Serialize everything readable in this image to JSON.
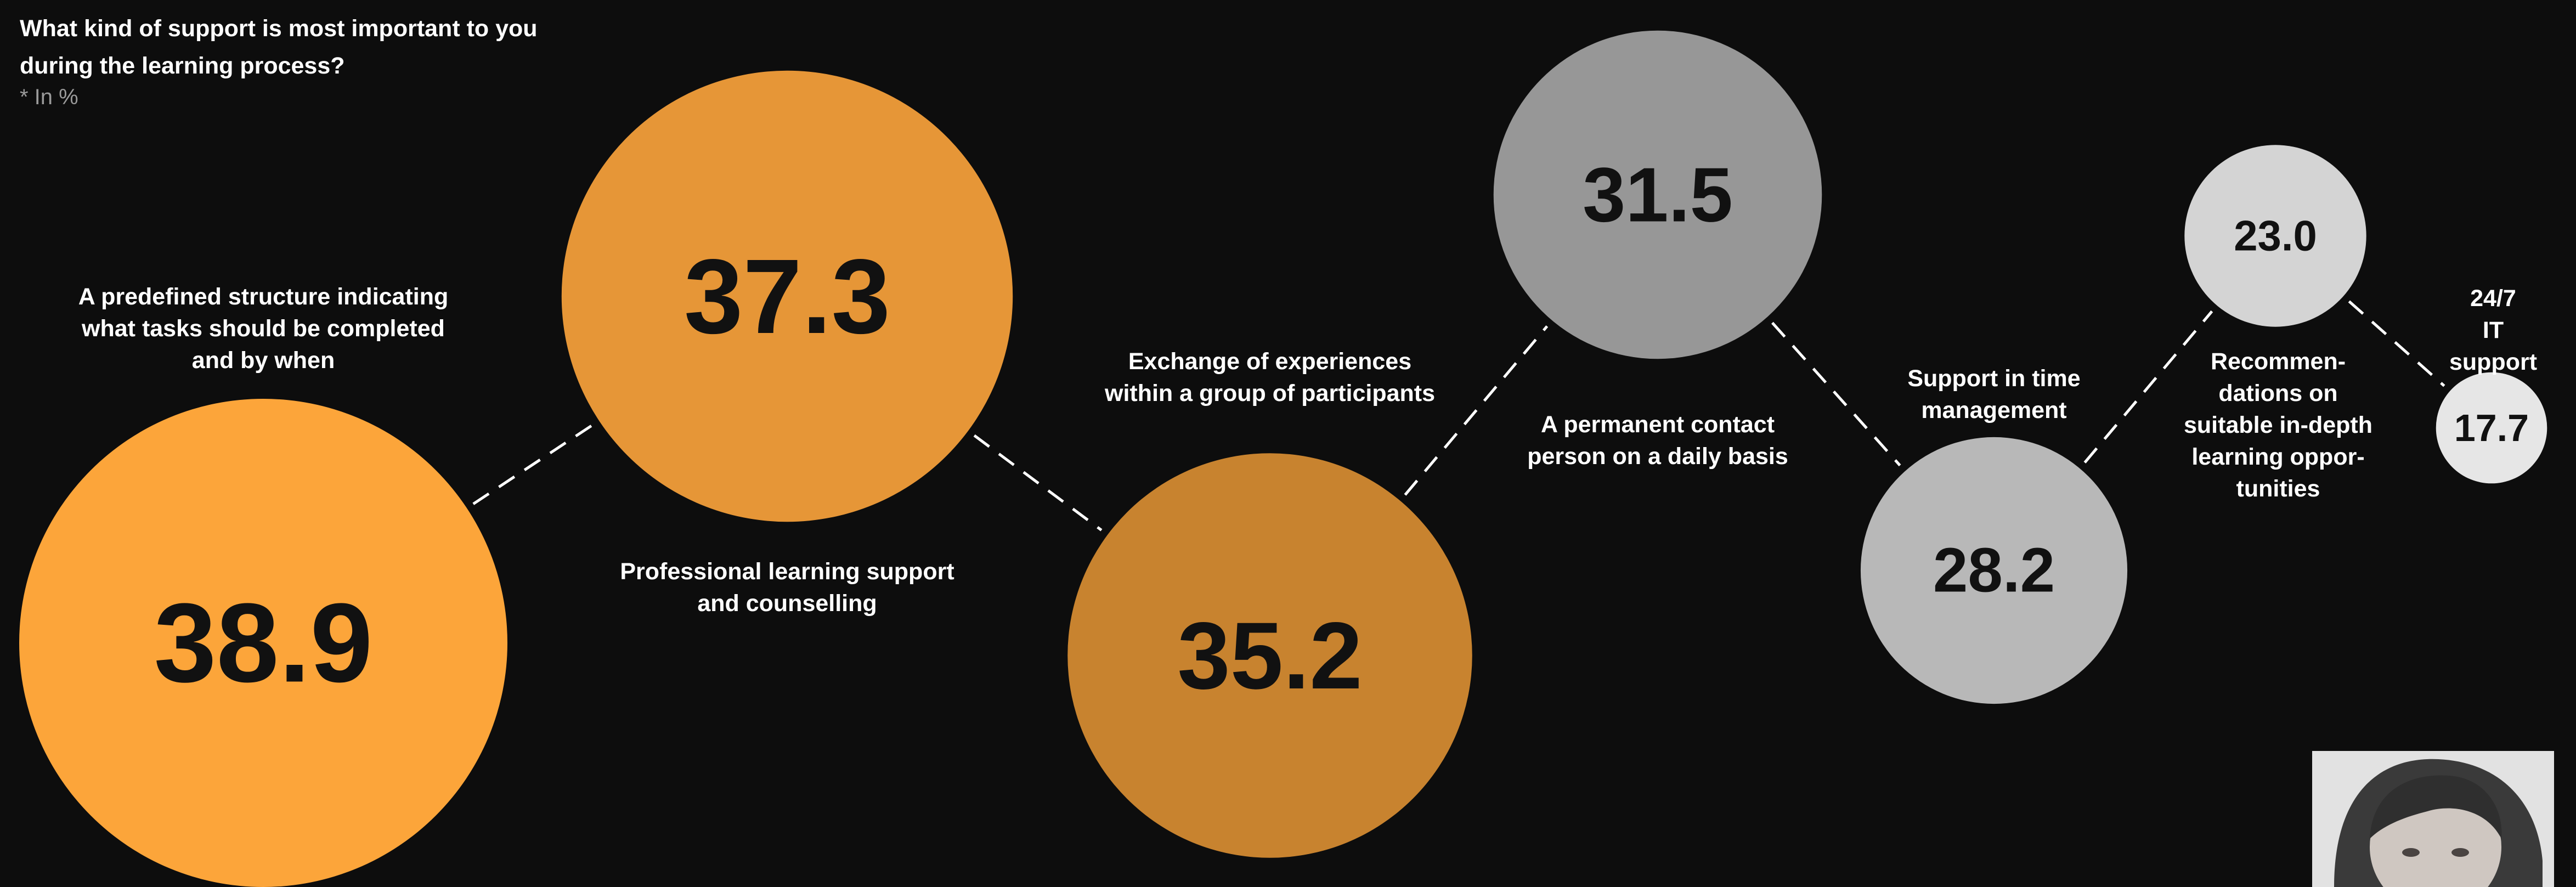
{
  "chart_data": {
    "type": "bubble",
    "title": "What kind of support is most important to you during the learning process?",
    "subtitle": "* In %",
    "unit": "%",
    "categories": [
      "A predefined structure indicating what tasks should be completed and by when",
      "Professional learning support and counselling",
      "Exchange of experiences within a group of participants",
      "A permanent contact person on a daily basis",
      "Support in time management",
      "Recommendations on suitable in-depth learning opportunities",
      "24/7 IT support"
    ],
    "labels": [
      "A predefined structure indicating\nwhat tasks should be completed\nand by when",
      "Professional learning support\nand counselling",
      "Exchange of experiences\nwithin a group of participants",
      "A permanent contact\nperson on a daily basis",
      "Support in time\nmanagement",
      "Recommen-\ndations on\nsuitable in-depth\nlearning oppor-\ntunities",
      "24/7\nIT support"
    ],
    "value_labels": [
      "38.9",
      "37.3",
      "35.2",
      "31.5",
      "28.2",
      "23.0",
      "17.7"
    ],
    "values": [
      38.9,
      37.3,
      35.2,
      31.5,
      28.2,
      23.0,
      17.7
    ],
    "colors": [
      "#fca53a",
      "#e69637",
      "#c8832f",
      "#979797",
      "#b8b8b8",
      "#d4d4d4",
      "#e6e6e6"
    ],
    "connector_style": "dashed white lines between consecutive bubbles",
    "legend": "none",
    "grid": false
  },
  "photo": {
    "icon": "person-photo"
  }
}
